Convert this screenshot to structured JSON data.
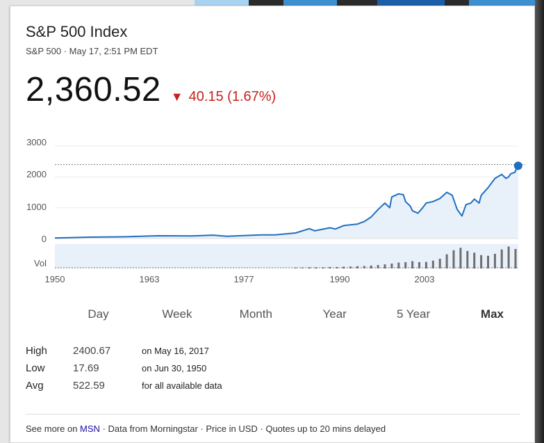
{
  "header": {
    "title": "S&P 500 Index",
    "subtitle": "S&P 500 · May 17, 2:51 PM EDT"
  },
  "quote": {
    "price": "2,360.52",
    "change_arrow": "▼",
    "change": "40.15 (1.67%)",
    "change_color": "#c5221f"
  },
  "chart_data": {
    "type": "line",
    "title": "",
    "xlabel": "",
    "ylabel": "",
    "x_ticks": [
      "1950",
      "1963",
      "1977",
      "1990",
      "2003"
    ],
    "y_ticks": [
      "3000",
      "2000",
      "1000",
      "0"
    ],
    "volume_label": "Vol",
    "ylim": [
      0,
      3000
    ],
    "xlim": [
      1950,
      2017.4
    ],
    "line_color": "#1f6fbf",
    "fill_color": "#e8f0fa",
    "reference_line_value": 2400.67,
    "current_point": {
      "x": 2017.38,
      "y": 2360.52
    },
    "series": [
      {
        "values_x": [
          1950,
          1955,
          1960,
          1965,
          1970,
          1973,
          1975,
          1980,
          1982,
          1985,
          1987,
          1987.8,
          1990,
          1990.8,
          1992,
          1994,
          1995,
          1996,
          1997,
          1998,
          1998.7,
          1999,
          2000,
          2000.7,
          2001,
          2001.7,
          2002,
          2002.8,
          2003.5,
          2004,
          2005,
          2006,
          2007,
          2007.8,
          2008.5,
          2009.2,
          2009.8,
          2010.5,
          2011,
          2011.7,
          2012,
          2013,
          2014,
          2015,
          2015.6,
          2016,
          2016.3,
          2016.9,
          2017,
          2017.38
        ],
        "values_y": [
          18,
          45,
          57,
          90,
          85,
          110,
          75,
          120,
          120,
          180,
          320,
          250,
          350,
          310,
          420,
          470,
          550,
          700,
          940,
          1150,
          1000,
          1350,
          1450,
          1420,
          1200,
          1050,
          900,
          820,
          1000,
          1150,
          1200,
          1300,
          1500,
          1400,
          950,
          730,
          1100,
          1150,
          1280,
          1150,
          1400,
          1650,
          1950,
          2080,
          1950,
          2000,
          2100,
          2150,
          2200,
          2360.52
        ]
      }
    ],
    "volume": {
      "x": [
        1985,
        1986,
        1987,
        1988,
        1989,
        1990,
        1991,
        1992,
        1993,
        1994,
        1995,
        1996,
        1997,
        1998,
        1999,
        2000,
        2001,
        2002,
        2003,
        2004,
        2005,
        2006,
        2007,
        2008,
        2009,
        2010,
        2011,
        2012,
        2013,
        2014,
        2015,
        2016,
        2017
      ],
      "values": [
        0.03,
        0.04,
        0.05,
        0.05,
        0.05,
        0.06,
        0.06,
        0.07,
        0.08,
        0.09,
        0.1,
        0.12,
        0.14,
        0.17,
        0.2,
        0.24,
        0.26,
        0.3,
        0.26,
        0.27,
        0.32,
        0.4,
        0.58,
        0.75,
        0.85,
        0.72,
        0.65,
        0.55,
        0.52,
        0.6,
        0.78,
        0.9,
        0.8
      ]
    }
  },
  "ranges": [
    {
      "label": "Day"
    },
    {
      "label": "Week"
    },
    {
      "label": "Month"
    },
    {
      "label": "Year"
    },
    {
      "label": "5 Year"
    },
    {
      "label": "Max"
    }
  ],
  "stats": {
    "high": {
      "label": "High",
      "value": "2400.67",
      "note": "on May 16, 2017"
    },
    "low": {
      "label": "Low",
      "value": "17.69",
      "note": "on Jun 30, 1950"
    },
    "avg": {
      "label": "Avg",
      "value": "522.59",
      "note": "for all available data"
    }
  },
  "footer": {
    "prefix": "See more on",
    "link": "MSN",
    "suffix": "· Data from Morningstar · Price in USD · Quotes up to 20 mins delayed"
  },
  "colors": {
    "deco_light": "#a8d3f0",
    "deco_mid": "#3d8fd0",
    "deco_dark": "#1a5fa8"
  }
}
